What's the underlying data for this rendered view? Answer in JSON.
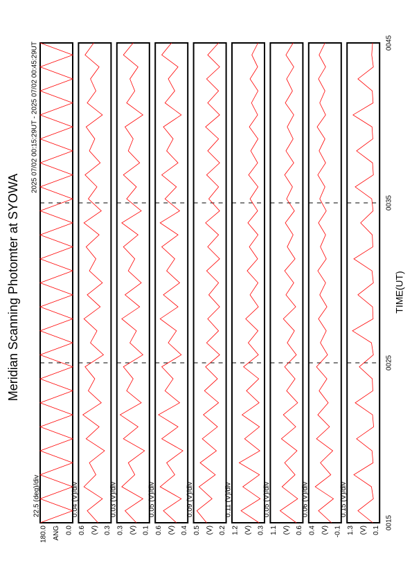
{
  "chart_data": {
    "type": "line",
    "title": "Meridian Scanning Photomter at SYOWA",
    "subtitle": "2025 07/02 00:15:29UT - 2025 07/02 00:45:29UT",
    "x_label": "TIME(UT)",
    "color": "#ff0000",
    "xlim": [
      15,
      45
    ],
    "xticks": [
      {
        "value": 15,
        "label": "0015"
      },
      {
        "value": 25,
        "label": "0025"
      },
      {
        "value": 35,
        "label": "0035"
      },
      {
        "value": 45,
        "label": "0045"
      }
    ],
    "x": [
      15,
      15.75,
      16.5,
      17.25,
      18,
      18.75,
      19.5,
      20.25,
      21,
      21.75,
      22.5,
      23.25,
      24,
      24.75,
      25.5,
      26.25,
      27,
      27.75,
      28.5,
      29.25,
      30,
      30.75,
      31.5,
      32.25,
      33,
      33.75,
      34.5,
      35.25,
      36,
      36.75,
      37.5,
      38.25,
      39,
      39.75,
      40.5,
      41.25,
      42,
      42.75,
      43.5,
      44.25,
      45
    ],
    "series": [
      {
        "name": "ANG",
        "scale": "22.5 (deg)/div",
        "ylim": [
          0,
          180
        ],
        "yticks": [
          {
            "value": 0,
            "label": "0.0"
          },
          {
            "value": 180,
            "label": "180.0"
          }
        ],
        "values": [
          180,
          0,
          180,
          0,
          180,
          0,
          180,
          0,
          180,
          0,
          180,
          0,
          180,
          0,
          180,
          0,
          180,
          0,
          180,
          0,
          180,
          0,
          180,
          0,
          180,
          0,
          180,
          0,
          180,
          0,
          180,
          0,
          180,
          0,
          180,
          0,
          180,
          0,
          180,
          0,
          180
        ]
      },
      {
        "name": "(V)",
        "scale": "0.04 (V)/div",
        "ylim": [
          0.3,
          0.6
        ],
        "yticks": [
          0.3,
          0.6
        ],
        "values": [
          0.42,
          0.52,
          0.38,
          0.55,
          0.44,
          0.5,
          0.36,
          0.53,
          0.41,
          0.56,
          0.39,
          0.51,
          0.45,
          0.54,
          0.37,
          0.49,
          0.43,
          0.55,
          0.4,
          0.52,
          0.38,
          0.5,
          0.44,
          0.53,
          0.41,
          0.55,
          0.39,
          0.51,
          0.43,
          0.54,
          0.4,
          0.5,
          0.45,
          0.53,
          0.38,
          0.52,
          0.44,
          0.49,
          0.41,
          0.54,
          0.46
        ]
      },
      {
        "name": "(V)",
        "scale": "0.03 (V)/div",
        "ylim": [
          0.1,
          0.3
        ],
        "yticks": [
          0.1,
          0.3
        ],
        "values": [
          0.18,
          0.25,
          0.14,
          0.27,
          0.19,
          0.23,
          0.13,
          0.26,
          0.17,
          0.28,
          0.15,
          0.24,
          0.2,
          0.26,
          0.14,
          0.22,
          0.18,
          0.27,
          0.16,
          0.25,
          0.15,
          0.23,
          0.19,
          0.26,
          0.17,
          0.27,
          0.15,
          0.24,
          0.18,
          0.26,
          0.16,
          0.23,
          0.2,
          0.25,
          0.14,
          0.24,
          0.19,
          0.22,
          0.17,
          0.26,
          0.2
        ]
      },
      {
        "name": "(V)",
        "scale": "0.05 (V)/div",
        "ylim": [
          0.4,
          0.6
        ],
        "yticks": [
          0.4,
          0.6
        ],
        "values": [
          0.47,
          0.55,
          0.44,
          0.57,
          0.48,
          0.53,
          0.43,
          0.56,
          0.46,
          0.58,
          0.45,
          0.54,
          0.49,
          0.56,
          0.44,
          0.52,
          0.47,
          0.57,
          0.46,
          0.55,
          0.45,
          0.53,
          0.48,
          0.56,
          0.46,
          0.57,
          0.45,
          0.54,
          0.47,
          0.56,
          0.46,
          0.53,
          0.49,
          0.55,
          0.44,
          0.54,
          0.48,
          0.52,
          0.46,
          0.56,
          0.5
        ]
      },
      {
        "name": "(V)",
        "scale": "0.09 (V)/div",
        "ylim": [
          0.2,
          0.5
        ],
        "yticks": [
          0.2,
          0.5
        ],
        "values": [
          0.38,
          0.47,
          0.33,
          0.45,
          0.3,
          0.44,
          0.29,
          0.42,
          0.28,
          0.41,
          0.27,
          0.4,
          0.28,
          0.39,
          0.26,
          0.38,
          0.27,
          0.37,
          0.26,
          0.36,
          0.27,
          0.38,
          0.26,
          0.37,
          0.27,
          0.39,
          0.26,
          0.36,
          0.27,
          0.38,
          0.26,
          0.37,
          0.27,
          0.39,
          0.26,
          0.37,
          0.27,
          0.38,
          0.26,
          0.37,
          0.27
        ]
      },
      {
        "name": "(V)",
        "scale": "0.11 (V)/div",
        "ylim": [
          0.3,
          1.2
        ],
        "yticks": [
          0.3,
          1.2
        ],
        "values": [
          0.45,
          0.95,
          0.42,
          0.9,
          0.44,
          1.0,
          0.43,
          0.85,
          0.44,
          0.92,
          0.45,
          0.8,
          0.46,
          0.88,
          0.47,
          0.75,
          0.48,
          0.82,
          0.47,
          0.7,
          0.48,
          0.78,
          0.49,
          0.72,
          0.48,
          0.76,
          0.49,
          0.7,
          0.48,
          0.74,
          0.49,
          0.68,
          0.48,
          0.72,
          0.49,
          0.66,
          0.48,
          0.7,
          0.49,
          0.65,
          0.48
        ]
      },
      {
        "name": "(V)",
        "scale": "0.05 (V)/div",
        "ylim": [
          0.6,
          1.1
        ],
        "yticks": [
          0.6,
          1.1
        ],
        "values": [
          0.7,
          0.95,
          0.68,
          0.92,
          0.72,
          0.88,
          0.69,
          0.93,
          0.71,
          0.9,
          0.68,
          0.85,
          0.72,
          0.88,
          0.7,
          0.84,
          0.73,
          0.9,
          0.71,
          0.86,
          0.74,
          0.88,
          0.72,
          0.84,
          0.75,
          0.87,
          0.73,
          0.85,
          0.76,
          0.88,
          0.74,
          0.86,
          0.75,
          0.84,
          0.74,
          0.87,
          0.76,
          0.85,
          0.74,
          0.86,
          0.75
        ]
      },
      {
        "name": "(V)",
        "scale": "0.06 (V)/div",
        "ylim": [
          -0.1,
          0.4
        ],
        "yticks": [
          -0.1,
          0.4
        ],
        "values": [
          0.05,
          0.25,
          0.02,
          0.3,
          0.06,
          0.22,
          0.03,
          0.28,
          0.08,
          0.26,
          0.1,
          0.24,
          0.12,
          0.28,
          0.11,
          0.22,
          0.13,
          0.25,
          0.12,
          0.23,
          0.14,
          0.26,
          0.13,
          0.22,
          0.14,
          0.25,
          0.13,
          0.23,
          0.15,
          0.26,
          0.14,
          0.24,
          0.15,
          0.27,
          0.14,
          0.23,
          0.15,
          0.25,
          0.14,
          0.24,
          0.15
        ]
      },
      {
        "name": "(V)",
        "scale": "0.15 (V)/div",
        "ylim": [
          0.1,
          1.3
        ],
        "yticks": [
          0.1,
          1.3
        ],
        "values": [
          0.35,
          0.9,
          0.33,
          0.4,
          1.05,
          0.34,
          0.38,
          0.95,
          0.32,
          0.36,
          1.0,
          0.35,
          0.37,
          0.85,
          0.33,
          0.4,
          1.1,
          0.34,
          0.36,
          0.9,
          0.33,
          0.38,
          1.05,
          0.35,
          0.37,
          0.8,
          0.34,
          0.39,
          1.0,
          0.33,
          0.36,
          0.95,
          0.35,
          0.38,
          1.08,
          0.34,
          0.37,
          0.9,
          0.33,
          0.39,
          0.36
        ]
      }
    ]
  }
}
